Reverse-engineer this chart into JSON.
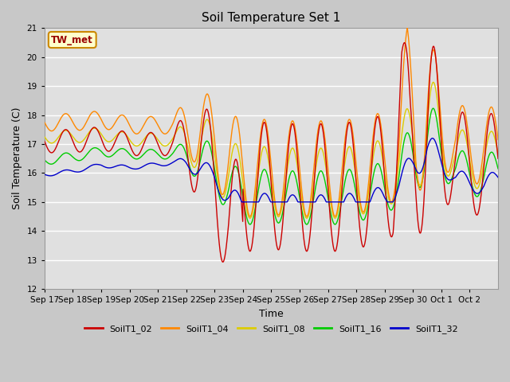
{
  "title": "Soil Temperature Set 1",
  "xlabel": "Time",
  "ylabel": "Soil Temperature (C)",
  "ylim": [
    12.0,
    21.0
  ],
  "yticks": [
    12.0,
    13.0,
    14.0,
    15.0,
    16.0,
    17.0,
    18.0,
    19.0,
    20.0,
    21.0
  ],
  "fig_bg_color": "#c8c8c8",
  "plot_bg": "#e0e0e0",
  "series_colors": {
    "SoilT1_02": "#cc0000",
    "SoilT1_04": "#ff8800",
    "SoilT1_08": "#ddcc00",
    "SoilT1_16": "#00cc00",
    "SoilT1_32": "#0000cc"
  },
  "annotation_text": "TW_met",
  "annotation_color": "#990000",
  "annotation_bg": "#ffffcc",
  "annotation_border": "#cc8800",
  "x_tick_labels": [
    "Sep 17",
    "Sep 18",
    "Sep 19",
    "Sep 20",
    "Sep 21",
    "Sep 22",
    "Sep 23",
    "Sep 24",
    "Sep 25",
    "Sep 26",
    "Sep 27",
    "Sep 28",
    "Sep 29",
    "Sep 30",
    "Oct 1",
    "Oct 2"
  ],
  "line_width": 1.0
}
